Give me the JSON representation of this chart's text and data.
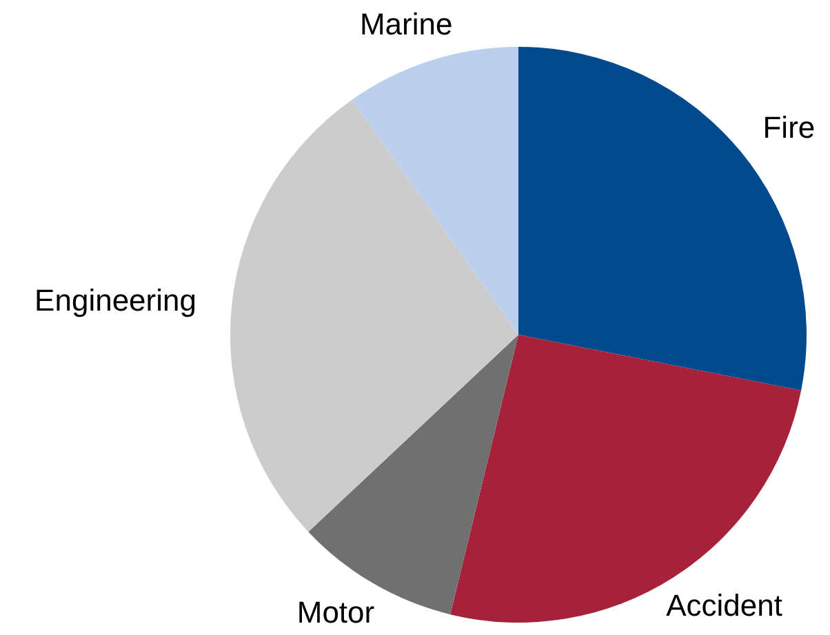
{
  "chart_data": {
    "type": "pie",
    "categories": [
      "Fire",
      "Accident",
      "Motor",
      "Engineering",
      "Marine"
    ],
    "values": [
      28.1,
      25.7,
      9.2,
      27.2,
      9.8
    ],
    "colors": [
      "#004a8d",
      "#a6213a",
      "#707070",
      "#cccccc",
      "#bcd0ee"
    ],
    "legend": false
  }
}
